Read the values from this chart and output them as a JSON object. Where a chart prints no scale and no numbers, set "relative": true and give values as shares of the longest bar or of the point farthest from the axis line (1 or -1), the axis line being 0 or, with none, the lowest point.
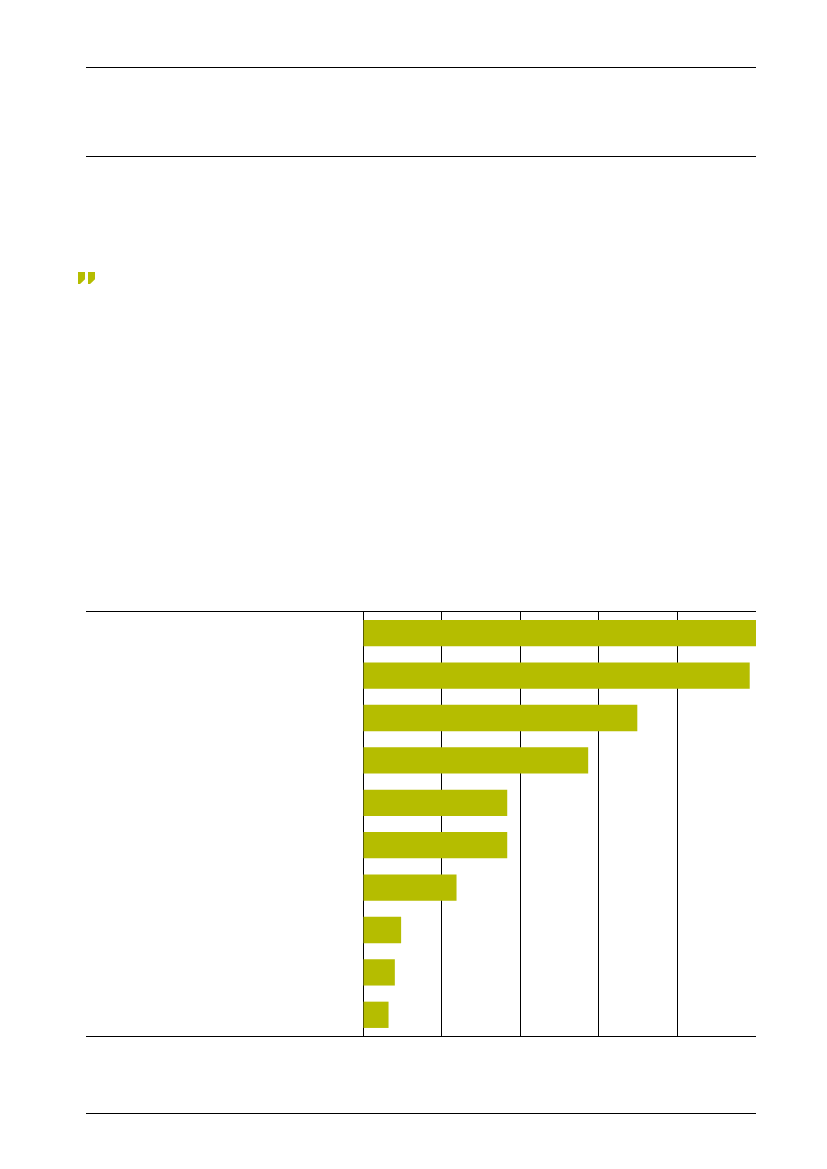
{
  "chart_data": {
    "type": "bar",
    "orientation": "horizontal",
    "relative": true,
    "grid": "x",
    "categories": [
      null,
      null,
      null,
      null,
      null,
      null,
      null,
      null,
      null,
      null
    ],
    "values": [
      1,
      0.984,
      0.698,
      0.573,
      0.367,
      0.367,
      0.238,
      0.097,
      0.081,
      0.065
    ],
    "color": "#b5bd00"
  }
}
